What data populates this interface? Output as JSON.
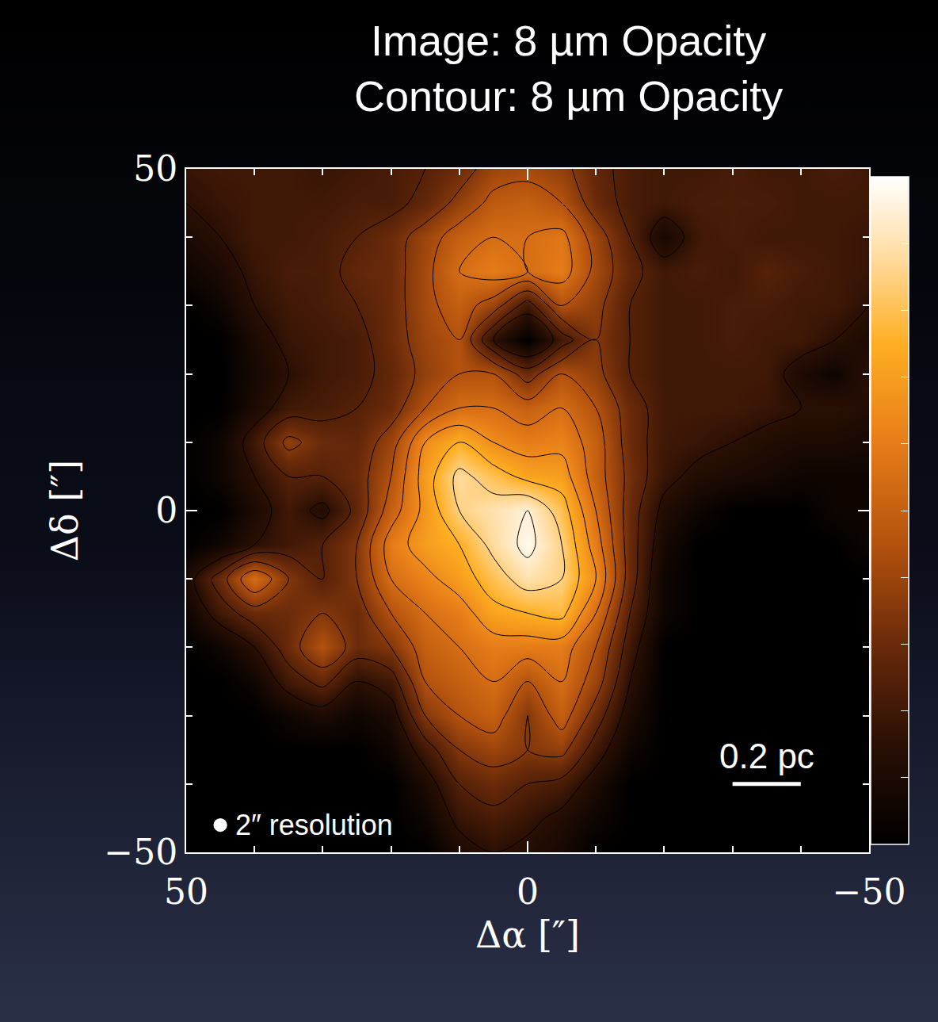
{
  "chart_data": {
    "type": "heatmap",
    "title": "Image: 8 µm Opacity",
    "subtitle": "Contour: 8 µm Opacity",
    "xlabel": "Δα [″]",
    "ylabel": "Δδ [″]",
    "xlim": [
      50,
      -50
    ],
    "ylim": [
      -50,
      50
    ],
    "xticks": [
      {
        "value": 50,
        "label": "50"
      },
      0,
      {
        "value": -50,
        "label": "−50"
      }
    ],
    "yticks": [
      {
        "value": -50,
        "label": "−50"
      },
      0,
      50
    ],
    "tick_labels": true,
    "x": [
      50,
      45,
      40,
      35,
      30,
      25,
      20,
      15,
      10,
      5,
      0,
      -5,
      -10,
      -15,
      -20,
      -25,
      -30,
      -35,
      -40,
      -45,
      -50
    ],
    "y": [
      50,
      45,
      40,
      35,
      30,
      25,
      20,
      15,
      10,
      5,
      0,
      -5,
      -10,
      -15,
      -20,
      -25,
      -30,
      -35,
      -40,
      -45,
      -50
    ],
    "z": [
      [
        0.18,
        0.2,
        0.2,
        0.2,
        0.18,
        0.2,
        0.22,
        0.25,
        0.3,
        0.4,
        0.42,
        0.38,
        0.28,
        0.22,
        0.2,
        0.2,
        0.22,
        0.2,
        0.2,
        0.22,
        0.2
      ],
      [
        0.15,
        0.18,
        0.2,
        0.2,
        0.2,
        0.22,
        0.22,
        0.28,
        0.38,
        0.48,
        0.5,
        0.45,
        0.3,
        0.22,
        0.2,
        0.22,
        0.22,
        0.22,
        0.2,
        0.2,
        0.2
      ],
      [
        0.1,
        0.15,
        0.2,
        0.2,
        0.22,
        0.25,
        0.3,
        0.4,
        0.5,
        0.55,
        0.55,
        0.58,
        0.4,
        0.25,
        0.08,
        0.2,
        0.22,
        0.2,
        0.2,
        0.2,
        0.18
      ],
      [
        0.05,
        0.1,
        0.18,
        0.22,
        0.22,
        0.28,
        0.3,
        0.42,
        0.55,
        0.6,
        0.55,
        0.6,
        0.42,
        0.28,
        0.2,
        0.22,
        0.2,
        0.25,
        0.22,
        0.2,
        0.18
      ],
      [
        0,
        0.05,
        0.15,
        0.2,
        0.22,
        0.25,
        0.3,
        0.42,
        0.5,
        0.4,
        0.2,
        0.45,
        0.38,
        0.25,
        0.2,
        0.2,
        0.22,
        0.22,
        0.2,
        0.2,
        0.15
      ],
      [
        0,
        0,
        0.1,
        0.18,
        0.2,
        0.22,
        0.3,
        0.4,
        0.45,
        0.15,
        0,
        0.2,
        0.35,
        0.25,
        0.2,
        0.2,
        0.22,
        0.2,
        0.2,
        0.15,
        0.1
      ],
      [
        0,
        0,
        0.08,
        0.15,
        0.2,
        0.22,
        0.28,
        0.38,
        0.45,
        0.45,
        0.3,
        0.45,
        0.38,
        0.25,
        0.2,
        0.2,
        0.2,
        0.2,
        0.1,
        0.05,
        0.15
      ],
      [
        0,
        0,
        0.1,
        0.2,
        0.22,
        0.25,
        0.3,
        0.45,
        0.55,
        0.55,
        0.5,
        0.55,
        0.45,
        0.3,
        0.2,
        0.2,
        0.2,
        0.18,
        0.15,
        0.15,
        0.12
      ],
      [
        0,
        0.05,
        0.2,
        0.38,
        0.3,
        0.28,
        0.4,
        0.65,
        0.75,
        0.65,
        0.6,
        0.62,
        0.5,
        0.3,
        0.2,
        0.18,
        0.15,
        0.12,
        0.1,
        0.1,
        0.08
      ],
      [
        0,
        0.05,
        0.15,
        0.25,
        0.25,
        0.3,
        0.45,
        0.7,
        0.88,
        0.8,
        0.72,
        0.7,
        0.5,
        0.32,
        0.18,
        0.12,
        0.1,
        0.08,
        0.05,
        0.05,
        0.05
      ],
      [
        0,
        0,
        0.1,
        0.2,
        0.12,
        0.28,
        0.5,
        0.68,
        0.85,
        0.9,
        0.95,
        0.8,
        0.55,
        0.3,
        0.12,
        0.05,
        0,
        0,
        0,
        0.05,
        0.05
      ],
      [
        0,
        0.05,
        0.15,
        0.2,
        0.25,
        0.35,
        0.6,
        0.7,
        0.75,
        0.88,
        0.98,
        0.85,
        0.6,
        0.3,
        0.08,
        0,
        0,
        0,
        0,
        0,
        0.05
      ],
      [
        0.1,
        0.3,
        0.55,
        0.35,
        0.25,
        0.35,
        0.55,
        0.62,
        0.7,
        0.8,
        0.9,
        0.85,
        0.65,
        0.3,
        0.05,
        0,
        0,
        0,
        0,
        0,
        0
      ],
      [
        0.05,
        0.2,
        0.3,
        0.3,
        0.35,
        0.3,
        0.45,
        0.55,
        0.6,
        0.72,
        0.75,
        0.78,
        0.55,
        0.25,
        0.05,
        0,
        0,
        0,
        0,
        0,
        0
      ],
      [
        0,
        0.05,
        0.15,
        0.3,
        0.45,
        0.3,
        0.35,
        0.5,
        0.55,
        0.6,
        0.6,
        0.6,
        0.45,
        0.2,
        0,
        0,
        0,
        0,
        0,
        0,
        0
      ],
      [
        0,
        0,
        0.05,
        0.2,
        0.28,
        0.15,
        0.2,
        0.45,
        0.5,
        0.55,
        0.45,
        0.55,
        0.4,
        0.15,
        0,
        0,
        0,
        0,
        0,
        0,
        0
      ],
      [
        0,
        0,
        0,
        0.05,
        0.1,
        0.05,
        0.1,
        0.35,
        0.45,
        0.5,
        0.35,
        0.5,
        0.3,
        0.1,
        0,
        0,
        0,
        0,
        0,
        0,
        0
      ],
      [
        0,
        0,
        0,
        0,
        0,
        0,
        0.05,
        0.2,
        0.35,
        0.4,
        0.35,
        0.38,
        0.2,
        0.05,
        0,
        0,
        0,
        0,
        0,
        0,
        0
      ],
      [
        0,
        0,
        0,
        0,
        0,
        0,
        0,
        0.1,
        0.25,
        0.3,
        0.25,
        0.22,
        0.1,
        0,
        0,
        0,
        0,
        0,
        0,
        0,
        0
      ],
      [
        0,
        0,
        0,
        0,
        0,
        0,
        0,
        0.05,
        0.18,
        0.22,
        0.18,
        0.12,
        0.05,
        0,
        0,
        0,
        0,
        0,
        0,
        0,
        0
      ],
      [
        0,
        0,
        0,
        0,
        0,
        0,
        0,
        0,
        0.1,
        0.15,
        0.12,
        0.08,
        0,
        0,
        0,
        0,
        0,
        0,
        0,
        0,
        0
      ]
    ],
    "zlim": [
      0,
      1
    ],
    "contour_levels": [
      0.15,
      0.25,
      0.35,
      0.45,
      0.55,
      0.65,
      0.75,
      0.85,
      0.95
    ],
    "scale_bar": {
      "label": "0.2 pc",
      "length": 10
    },
    "beam": {
      "label": "2″ resolution",
      "size": 2
    }
  }
}
